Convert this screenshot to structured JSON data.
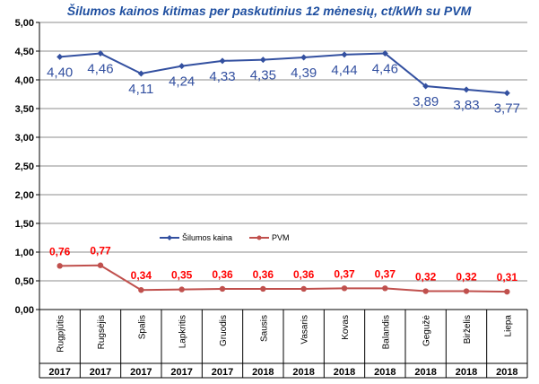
{
  "chart_data": {
    "type": "line",
    "title": "Šilumos kainos kitimas per paskutinius 12 mėnesių, ct/kWh su PVM",
    "xlabel": "",
    "ylabel": "",
    "ylim": [
      0,
      5
    ],
    "yticks": [
      "0,00",
      "0,50",
      "1,00",
      "1,50",
      "2,00",
      "2,50",
      "3,00",
      "3,50",
      "4,00",
      "4,50",
      "5,00"
    ],
    "grid": true,
    "legend_position": "center-left",
    "categories": [
      "Rugpjūtis",
      "Rugsėjis",
      "Spalis",
      "Lapkritis",
      "Gruodis",
      "Sausis",
      "Vasaris",
      "Kovas",
      "Balandis",
      "Gegužė",
      "Birželis",
      "Liepa"
    ],
    "years": [
      "2017",
      "2017",
      "2017",
      "2017",
      "2017",
      "2018",
      "2018",
      "2018",
      "2018",
      "2018",
      "2018",
      "2018"
    ],
    "series": [
      {
        "name": "Šilumos kaina",
        "color": "#3350A0",
        "values": [
          4.4,
          4.46,
          4.11,
          4.24,
          4.33,
          4.35,
          4.39,
          4.44,
          4.46,
          3.89,
          3.83,
          3.77
        ],
        "labels": [
          "4,40",
          "4,46",
          "4,11",
          "4,24",
          "4,33",
          "4,35",
          "4,39",
          "4,44",
          "4,46",
          "3,89",
          "3,83",
          "3,77"
        ]
      },
      {
        "name": "PVM",
        "color": "#C0504D",
        "label_color": "#FF0000",
        "values": [
          0.76,
          0.77,
          0.34,
          0.35,
          0.36,
          0.36,
          0.36,
          0.37,
          0.37,
          0.32,
          0.32,
          0.31
        ],
        "labels": [
          "0,76",
          "0,77",
          "0,34",
          "0,35",
          "0,36",
          "0,36",
          "0,36",
          "0,37",
          "0,37",
          "0,32",
          "0,32",
          "0,31"
        ]
      }
    ]
  }
}
